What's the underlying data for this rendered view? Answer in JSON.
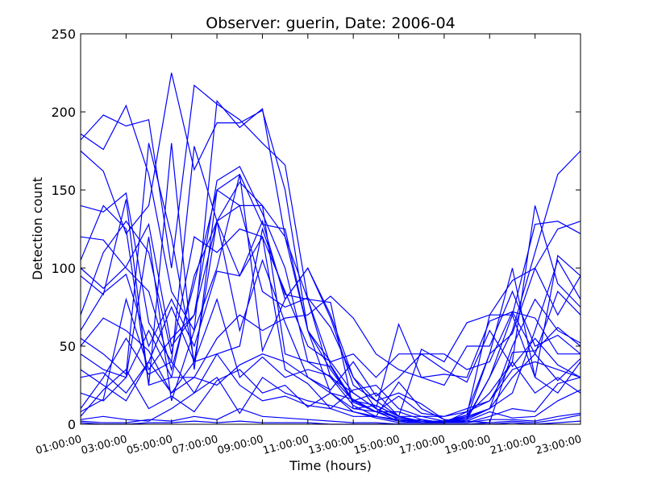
{
  "chart_data": {
    "type": "line",
    "title": "Observer: guerin, Date: 2006-04",
    "xlabel": "Time (hours)",
    "ylabel": "Detection count",
    "ylim": [
      0,
      250
    ],
    "xlim": [
      1,
      23
    ],
    "grid": false,
    "line_color": "#0000ff",
    "x_tick_labels": [
      "01:00:00",
      "03:00:00",
      "05:00:00",
      "07:00:00",
      "09:00:00",
      "11:00:00",
      "13:00:00",
      "15:00:00",
      "17:00:00",
      "19:00:00",
      "21:00:00",
      "23:00:00"
    ],
    "x_tick_values": [
      1,
      3,
      5,
      7,
      9,
      11,
      13,
      15,
      17,
      19,
      21,
      23
    ],
    "y_tick_labels": [
      "0",
      "50",
      "100",
      "150",
      "200",
      "250"
    ],
    "y_tick_values": [
      0,
      50,
      100,
      150,
      200,
      250
    ],
    "x": [
      1,
      2,
      3,
      4,
      5,
      6,
      7,
      8,
      9,
      10,
      11,
      12,
      13,
      14,
      15,
      16,
      17,
      18,
      19,
      20,
      21,
      22,
      23
    ],
    "series": [
      {
        "values": [
          186,
          176,
          204,
          160,
          85,
          60,
          207,
          190,
          202,
          120,
          80,
          30,
          12,
          5,
          3,
          2,
          2,
          4,
          30,
          60,
          110,
          160,
          175
        ]
      },
      {
        "values": [
          182,
          198,
          191,
          195,
          100,
          217,
          205,
          195,
          180,
          166,
          80,
          38,
          15,
          8,
          2,
          1,
          1,
          4,
          45,
          58,
          100,
          125,
          130
        ]
      },
      {
        "values": [
          175,
          162,
          122,
          140,
          225,
          163,
          193,
          193,
          201,
          150,
          60,
          20,
          8,
          4,
          1,
          1,
          1,
          3,
          30,
          70,
          128,
          130,
          122
        ]
      },
      {
        "values": [
          140,
          136,
          148,
          65,
          40,
          178,
          130,
          155,
          140,
          120,
          60,
          40,
          20,
          10,
          4,
          2,
          1,
          8,
          45,
          100,
          30,
          108,
          95
        ]
      },
      {
        "values": [
          120,
          118,
          100,
          85,
          35,
          90,
          150,
          160,
          128,
          125,
          60,
          35,
          15,
          12,
          5,
          1,
          1,
          5,
          10,
          20,
          60,
          105,
          80
        ]
      },
      {
        "values": [
          100,
          87,
          101,
          128,
          50,
          70,
          156,
          165,
          135,
          100,
          40,
          30,
          20,
          10,
          3,
          1,
          2,
          6,
          20,
          40,
          140,
          90,
          75
        ]
      },
      {
        "values": [
          95,
          83,
          144,
          25,
          30,
          95,
          130,
          140,
          85,
          75,
          81,
          62,
          30,
          15,
          5,
          2,
          1,
          3,
          10,
          50,
          80,
          60,
          52
        ]
      },
      {
        "values": [
          70,
          110,
          130,
          110,
          45,
          120,
          110,
          125,
          120,
          85,
          50,
          40,
          45,
          30,
          45,
          45,
          45,
          35,
          40,
          72,
          45,
          85,
          70
        ]
      },
      {
        "values": [
          60,
          84,
          96,
          50,
          80,
          50,
          98,
          95,
          130,
          80,
          100,
          70,
          30,
          10,
          64,
          30,
          32,
          30,
          66,
          72,
          68,
          45,
          45
        ]
      },
      {
        "values": [
          50,
          68,
          60,
          47,
          20,
          30,
          55,
          70,
          60,
          68,
          70,
          82,
          68,
          45,
          35,
          30,
          25,
          50,
          50,
          85,
          50,
          57,
          45
        ]
      },
      {
        "values": [
          45,
          35,
          30,
          120,
          15,
          60,
          100,
          160,
          47,
          80,
          100,
          68,
          25,
          15,
          20,
          13,
          3,
          2,
          1,
          46,
          47,
          62,
          50
        ]
      },
      {
        "values": [
          35,
          25,
          15,
          40,
          20,
          40,
          45,
          50,
          125,
          83,
          80,
          78,
          10,
          12,
          5,
          48,
          40,
          65,
          70,
          70,
          30,
          20,
          40
        ]
      },
      {
        "values": [
          30,
          33,
          20,
          40,
          75,
          40,
          80,
          30,
          43,
          30,
          35,
          31,
          15,
          20,
          5,
          5,
          2,
          4,
          10,
          30,
          45,
          28,
          42
        ]
      },
      {
        "values": [
          20,
          15,
          30,
          60,
          30,
          30,
          25,
          38,
          45,
          40,
          30,
          20,
          10,
          8,
          18,
          7,
          5,
          10,
          15,
          40,
          20,
          30,
          20
        ]
      },
      {
        "values": [
          10,
          30,
          55,
          32,
          40,
          20,
          30,
          7,
          30,
          20,
          15,
          12,
          8,
          5,
          27,
          10,
          3,
          1,
          5,
          10,
          8,
          26,
          30
        ]
      },
      {
        "values": [
          5,
          22,
          35,
          10,
          18,
          8,
          28,
          35,
          20,
          25,
          11,
          20,
          16,
          8,
          8,
          3,
          1,
          2,
          8,
          4,
          5,
          15,
          22
        ]
      },
      {
        "values": [
          3,
          5,
          3,
          2,
          10,
          20,
          45,
          25,
          15,
          18,
          12,
          10,
          5,
          5,
          2,
          3,
          1,
          1,
          3,
          3,
          2,
          5,
          7
        ]
      },
      {
        "values": [
          2,
          1,
          1,
          3,
          2,
          5,
          3,
          10,
          5,
          4,
          3,
          2,
          1,
          1,
          0,
          0,
          0,
          0,
          1,
          2,
          1,
          3,
          6
        ]
      },
      {
        "values": [
          1,
          0,
          0,
          1,
          1,
          2,
          1,
          2,
          1,
          1,
          1,
          0,
          0,
          0,
          0,
          0,
          0,
          0,
          0,
          1,
          0,
          1,
          2
        ]
      },
      {
        "values": [
          105,
          140,
          125,
          25,
          180,
          35,
          150,
          140,
          140,
          45,
          40,
          37,
          14,
          8,
          4,
          2,
          1,
          6,
          70,
          92,
          100,
          70,
          95
        ]
      },
      {
        "values": [
          8,
          16,
          80,
          35,
          55,
          70,
          130,
          60,
          105,
          65,
          30,
          22,
          40,
          18,
          30,
          45,
          35,
          27,
          60,
          37,
          55,
          38,
          30
        ]
      },
      {
        "values": [
          55,
          45,
          32,
          180,
          120,
          40,
          130,
          95,
          120,
          35,
          26,
          10,
          22,
          25,
          10,
          5,
          5,
          8,
          15,
          35,
          40,
          35,
          30
        ]
      }
    ]
  }
}
